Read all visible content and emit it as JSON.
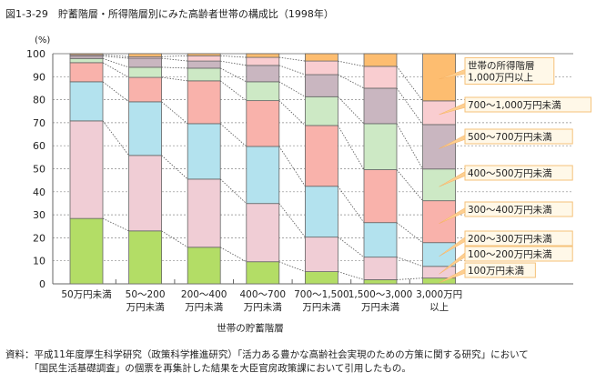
{
  "chart_data": {
    "type": "bar",
    "stacked": true,
    "title": "図1-3-29　貯蓄階層・所得階層別にみた高齢者世帯の構成比（1998年）",
    "xlabel": "世帯の貯蓄階層",
    "ylabel": "(%)",
    "ylim": [
      0,
      100
    ],
    "yticks": [
      "0",
      "10",
      "20",
      "30",
      "40",
      "50",
      "60",
      "70",
      "80",
      "90",
      "100"
    ],
    "grid": true,
    "legend_title": "世帯の所得階層",
    "legend_placement": "right",
    "categories": [
      [
        "50万円未満"
      ],
      [
        "50〜200",
        "万円未満"
      ],
      [
        "200〜400",
        "万円未満"
      ],
      [
        "400〜700",
        "万円未満"
      ],
      [
        "700〜1,500",
        "万円未満"
      ],
      [
        "1,500〜3,000",
        "万円未満"
      ],
      [
        "3,000万円",
        "以上"
      ]
    ],
    "series": [
      {
        "name": "100万円未満",
        "color": "#b3dd66",
        "values": [
          28.4,
          23.0,
          15.9,
          9.6,
          5.3,
          1.8,
          2.5
        ]
      },
      {
        "name": "100〜200万円未満",
        "color": "#f0cdd5",
        "values": [
          42.4,
          32.8,
          29.6,
          25.3,
          15.0,
          9.8,
          5.1
        ]
      },
      {
        "name": "200〜300万円未満",
        "color": "#b3e2ee",
        "values": [
          17.0,
          23.3,
          24.1,
          24.8,
          22.1,
          15.0,
          10.3
        ]
      },
      {
        "name": "300〜400万円未満",
        "color": "#f9b2ab",
        "values": [
          8.3,
          10.6,
          18.6,
          19.9,
          26.4,
          23.0,
          18.2
        ]
      },
      {
        "name": "400〜500万円未満",
        "color": "#cde9c5",
        "values": [
          1.8,
          4.4,
          5.5,
          8.2,
          12.5,
          20.0,
          13.8
        ]
      },
      {
        "name": "500〜700万円未満",
        "color": "#c9b6c0",
        "values": [
          1.0,
          3.9,
          3.1,
          7.1,
          9.6,
          15.4,
          19.3
        ]
      },
      {
        "name": "700〜1,000万円未満",
        "color": "#f9cdd0",
        "values": [
          0.6,
          0.7,
          2.3,
          3.5,
          5.9,
          9.5,
          10.3
        ]
      },
      {
        "name": "1,000万円以上",
        "color": "#fdbd70",
        "values": [
          0.5,
          1.3,
          0.9,
          1.6,
          3.2,
          5.5,
          20.5
        ]
      }
    ]
  },
  "note": [
    "資料：平成11年度厚生科学研究（政策科学推進研究）「活力ある豊かな高齢社会実現のための方策に関する研究」において",
    "　　　「国民生活基礎調査」の個票を再集計した結果を大臣官房政策課において引用したもの。"
  ]
}
